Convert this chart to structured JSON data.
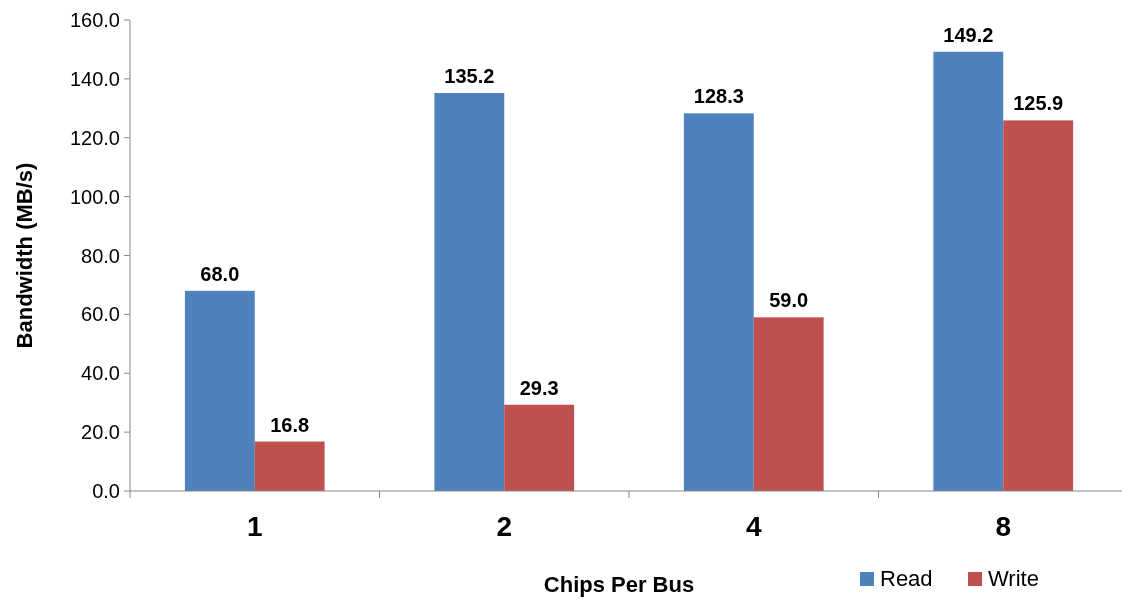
{
  "chart_data": {
    "type": "bar",
    "xlabel": "Chips Per Bus",
    "ylabel": "Bandwidth (MB/s)",
    "categories": [
      "1",
      "2",
      "4",
      "8"
    ],
    "series": [
      {
        "name": "Read",
        "color": "#4f81bd",
        "values": [
          68.0,
          135.2,
          128.3,
          149.2
        ],
        "value_labels": [
          "68.0",
          "135.2",
          "128.3",
          "149.2"
        ]
      },
      {
        "name": "Write",
        "color": "#c0504d",
        "values": [
          16.8,
          29.3,
          59.0,
          125.9
        ],
        "value_labels": [
          "16.8",
          "29.3",
          "59.0",
          "125.9"
        ]
      }
    ],
    "ylim": [
      0,
      160
    ],
    "yticks": [
      {
        "value": 0,
        "label": "0.0"
      },
      {
        "value": 20,
        "label": "20.0"
      },
      {
        "value": 40,
        "label": "40.0"
      },
      {
        "value": 60,
        "label": "60.0"
      },
      {
        "value": 80,
        "label": "80.0"
      },
      {
        "value": 100,
        "label": "100.0"
      },
      {
        "value": 120,
        "label": "120.0"
      },
      {
        "value": 140,
        "label": "140.0"
      },
      {
        "value": 160,
        "label": "160.0"
      }
    ],
    "grid": false,
    "legend": "bottom right"
  }
}
